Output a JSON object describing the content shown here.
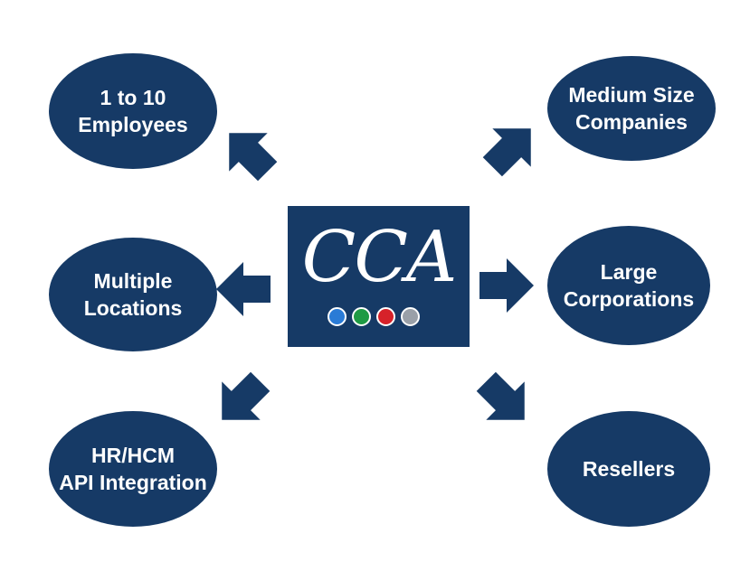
{
  "logo": {
    "text": "CCA",
    "dots": [
      {
        "name": "blue",
        "color": "#2a7bd6"
      },
      {
        "name": "green",
        "color": "#1f9a44"
      },
      {
        "name": "red",
        "color": "#d6222a"
      },
      {
        "name": "gray",
        "color": "#9aa0a8"
      }
    ]
  },
  "nodes": [
    {
      "label": "1 to 10\nEmployees"
    },
    {
      "label": "Multiple\nLocations"
    },
    {
      "label": "HR/HCM\nAPI Integration"
    },
    {
      "label": "Medium Size\nCompanies"
    },
    {
      "label": "Large\nCorporations"
    },
    {
      "label": "Resellers"
    }
  ],
  "colors": {
    "node_fill": "#163a66",
    "arrow_fill": "#163a66"
  }
}
